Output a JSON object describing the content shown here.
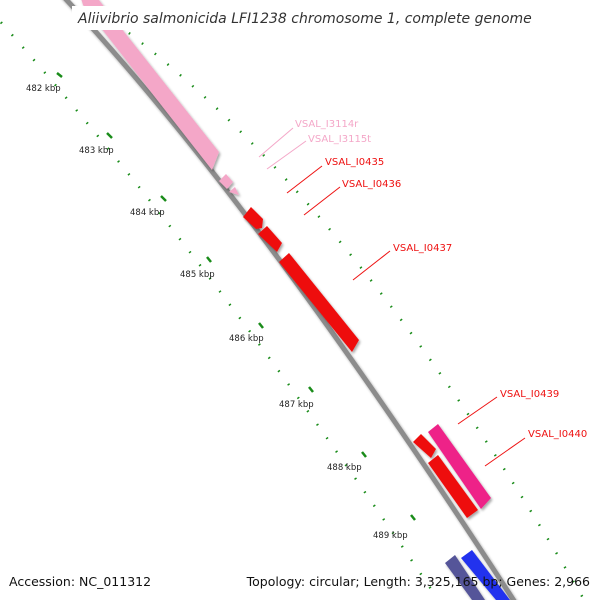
{
  "title": "Aliivibrio salmonicida LFI1238 chromosome 1, complete genome",
  "footer": {
    "accession": "Accession: NC_011312",
    "topology": "Topology: circular; Length: 3,325,165 bp; Genes: 2,966"
  },
  "colors": {
    "backbone": "#8c8c8c",
    "tick_marks": "#1a8c1a",
    "pink_light": "#f4a7c8",
    "red": "#ee1111",
    "magenta": "#ee2288",
    "blue": "#2233ee",
    "navy": "#555599"
  },
  "ticks": [
    "482 kbp",
    "483 kbp",
    "484 kbp",
    "485 kbp",
    "486 kbp",
    "487 kbp",
    "488 kbp",
    "489 kbp"
  ],
  "genes": [
    {
      "label": "VSAL_I3114r",
      "color": "#f4a7c8"
    },
    {
      "label": "VSAL_I3115t",
      "color": "#f4a7c8"
    },
    {
      "label": "VSAL_I0435",
      "color": "#ee1111"
    },
    {
      "label": "VSAL_I0436",
      "color": "#ee1111"
    },
    {
      "label": "VSAL_I0437",
      "color": "#ee1111"
    },
    {
      "label": "VSAL_I0439",
      "color": "#ee1111"
    },
    {
      "label": "VSAL_I0440",
      "color": "#ee1111"
    }
  ]
}
